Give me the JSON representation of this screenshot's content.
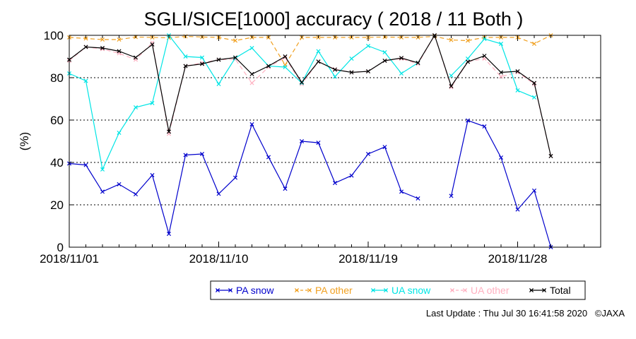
{
  "chart_data": {
    "type": "line",
    "title": "SGLI/SICE[1000] accuracy ( 2018 / 11 Both )",
    "ylabel": "(%)",
    "xlabel": "",
    "ylim": [
      0,
      100
    ],
    "y_ticks": [
      0,
      20,
      40,
      60,
      80,
      100
    ],
    "y_tick_labels": [
      "0",
      "20",
      "40",
      "60",
      "80",
      "100"
    ],
    "xlim": [
      "2018-11-01",
      "2018-12-03"
    ],
    "x_tick_labels": [
      "2018/11/01",
      "2018/11/10",
      "2018/11/19",
      "2018/11/28"
    ],
    "x_tick_dates": [
      "2018-11-01",
      "2018-11-10",
      "2018-11-19",
      "2018-11-28"
    ],
    "grid": "horizontal dotted",
    "legend_position": "bottom",
    "x": [
      "2018-11-01",
      "2018-11-02",
      "2018-11-03",
      "2018-11-04",
      "2018-11-05",
      "2018-11-06",
      "2018-11-07",
      "2018-11-08",
      "2018-11-09",
      "2018-11-10",
      "2018-11-11",
      "2018-11-12",
      "2018-11-13",
      "2018-11-14",
      "2018-11-15",
      "2018-11-16",
      "2018-11-17",
      "2018-11-18",
      "2018-11-19",
      "2018-11-20",
      "2018-11-21",
      "2018-11-22",
      "2018-11-23",
      "2018-11-24",
      "2018-11-25",
      "2018-11-26",
      "2018-11-27",
      "2018-11-28",
      "2018-11-29",
      "2018-11-30",
      "2018-12-01"
    ],
    "series": [
      {
        "name": "PA snow",
        "color": "#0000cc",
        "dash": "",
        "values": [
          39.5,
          38.8,
          26.2,
          29.7,
          25.0,
          34.0,
          6.3,
          43.5,
          44.0,
          25.2,
          32.8,
          58.0,
          42.5,
          27.6,
          50.0,
          49.3,
          30.3,
          33.8,
          44.0,
          47.3,
          26.2,
          23.0,
          null,
          24.2,
          59.8,
          57.0,
          42.3,
          17.8,
          26.7,
          0.0,
          null
        ]
      },
      {
        "name": "PA other",
        "color": "#f0a020",
        "dash": "6,4",
        "values": [
          99.0,
          98.5,
          98.0,
          98.0,
          99.2,
          99.0,
          98.8,
          99.5,
          99.2,
          99.0,
          97.5,
          99.0,
          99.0,
          86.0,
          99.0,
          99.0,
          99.0,
          99.0,
          99.0,
          99.2,
          99.0,
          99.0,
          99.5,
          97.8,
          97.5,
          99.0,
          99.0,
          99.0,
          96.0,
          100.0,
          null
        ]
      },
      {
        "name": "UA snow",
        "color": "#00e5e5",
        "dash": "",
        "values": [
          82.0,
          78.5,
          36.7,
          54.0,
          66.0,
          68.0,
          100.0,
          90.0,
          89.5,
          77.0,
          89.3,
          94.0,
          85.5,
          85.0,
          77.5,
          92.5,
          80.5,
          89.0,
          95.0,
          92.0,
          82.0,
          87.0,
          null,
          81.0,
          89.0,
          98.3,
          96.0,
          74.0,
          70.7,
          null,
          null
        ]
      },
      {
        "name": "UA other",
        "color": "#ffb0c0",
        "dash": "6,4",
        "values": [
          88.0,
          94.5,
          93.5,
          91.5,
          88.5,
          96.5,
          53.5,
          85.5,
          87.0,
          88.5,
          88.7,
          77.5,
          85.0,
          89.5,
          77.0,
          87.5,
          84.0,
          82.5,
          83.0,
          88.0,
          89.0,
          86.5,
          100.0,
          75.5,
          87.5,
          89.0,
          80.5,
          82.5,
          77.0,
          43.0,
          null
        ]
      },
      {
        "name": "Total",
        "color": "#000000",
        "dash": "",
        "values": [
          88.5,
          94.5,
          94.0,
          92.5,
          89.5,
          95.7,
          54.5,
          85.5,
          86.5,
          88.5,
          89.5,
          81.7,
          85.5,
          90.0,
          77.8,
          87.6,
          83.8,
          82.5,
          83.0,
          88.0,
          89.3,
          87.0,
          100.0,
          76.0,
          87.5,
          90.3,
          82.5,
          83.0,
          77.5,
          43.0,
          null
        ]
      }
    ]
  },
  "footer": {
    "last_update": "Last Update : Thu Jul 30 16:41:58 2020",
    "copyright": "©JAXA"
  }
}
